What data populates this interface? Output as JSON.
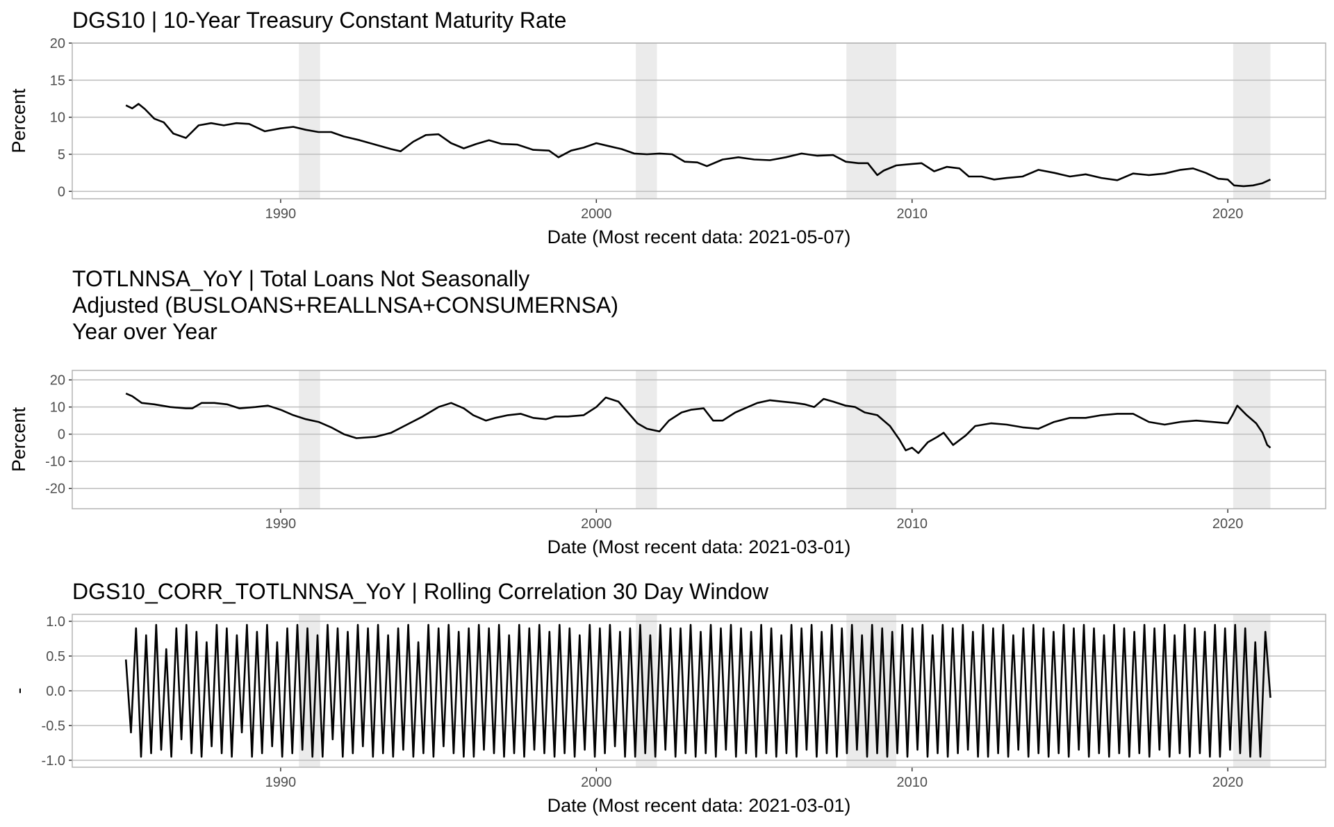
{
  "chart_data": [
    {
      "type": "line",
      "title": "DGS10 | 10-Year Treasury Constant Maturity Rate",
      "xlabel": "Date (Most recent data: 2021-05-07)",
      "ylabel": "Percent",
      "xlim": [
        1983.4,
        2023.1
      ],
      "ylim": [
        -1,
        20
      ],
      "yticks": [
        0,
        5,
        10,
        15,
        20
      ],
      "ytick_labels": [
        "0",
        "5",
        "10",
        "15",
        "20"
      ],
      "xticks": [
        1990,
        2000,
        2010,
        2020
      ],
      "xtick_labels": [
        "1990",
        "2000",
        "2010",
        "2020"
      ],
      "grid": true,
      "recession_shading": [
        [
          1990.58,
          1991.25
        ],
        [
          2001.25,
          2001.92
        ],
        [
          2007.92,
          2009.5
        ],
        [
          2020.17,
          2021.35
        ]
      ],
      "series": [
        {
          "x": [
            1985.1,
            1985.3,
            1985.5,
            1985.7,
            1986.0,
            1986.3,
            1986.6,
            1987.0,
            1987.4,
            1987.8,
            1988.2,
            1988.6,
            1989.0,
            1989.5,
            1990.0,
            1990.4,
            1990.8,
            1991.2,
            1991.6,
            1992.0,
            1992.5,
            1993.0,
            1993.5,
            1993.8,
            1994.2,
            1994.6,
            1995.0,
            1995.4,
            1995.8,
            1996.2,
            1996.6,
            1997.0,
            1997.5,
            1998.0,
            1998.5,
            1998.8,
            1999.2,
            1999.6,
            2000.0,
            2000.4,
            2000.8,
            2001.2,
            2001.6,
            2002.0,
            2002.4,
            2002.8,
            2003.2,
            2003.5,
            2004.0,
            2004.5,
            2005.0,
            2005.5,
            2006.0,
            2006.5,
            2007.0,
            2007.5,
            2007.9,
            2008.3,
            2008.6,
            2008.9,
            2009.1,
            2009.5,
            2010.0,
            2010.3,
            2010.7,
            2011.1,
            2011.5,
            2011.8,
            2012.2,
            2012.6,
            2013.0,
            2013.5,
            2014.0,
            2014.5,
            2015.0,
            2015.5,
            2016.0,
            2016.5,
            2017.0,
            2017.5,
            2018.0,
            2018.5,
            2018.9,
            2019.3,
            2019.7,
            2020.0,
            2020.2,
            2020.5,
            2020.8,
            2021.1,
            2021.35
          ],
          "values": [
            11.6,
            11.2,
            11.8,
            11.1,
            9.8,
            9.3,
            7.8,
            7.2,
            8.9,
            9.2,
            8.9,
            9.2,
            9.1,
            8.1,
            8.5,
            8.7,
            8.3,
            8.0,
            8.0,
            7.4,
            6.9,
            6.3,
            5.7,
            5.4,
            6.7,
            7.6,
            7.7,
            6.5,
            5.8,
            6.4,
            6.9,
            6.4,
            6.3,
            5.6,
            5.5,
            4.6,
            5.5,
            5.9,
            6.5,
            6.1,
            5.7,
            5.1,
            5.0,
            5.1,
            5.0,
            4.0,
            3.9,
            3.4,
            4.3,
            4.6,
            4.3,
            4.2,
            4.6,
            5.1,
            4.8,
            4.9,
            4.0,
            3.8,
            3.8,
            2.2,
            2.8,
            3.5,
            3.7,
            3.8,
            2.7,
            3.3,
            3.1,
            2.0,
            2.0,
            1.6,
            1.8,
            2.0,
            2.9,
            2.5,
            2.0,
            2.3,
            1.8,
            1.5,
            2.4,
            2.2,
            2.4,
            2.9,
            3.1,
            2.5,
            1.7,
            1.6,
            0.8,
            0.7,
            0.8,
            1.1,
            1.6
          ]
        }
      ]
    },
    {
      "type": "line",
      "title": "TOTLNNSA_YoY | Total Loans Not Seasonally\nAdjusted (BUSLOANS+REALLNSA+CONSUMERNSA)\nYear over Year",
      "title_lines": [
        "TOTLNNSA_YoY | Total Loans Not Seasonally",
        "Adjusted (BUSLOANS+REALLNSA+CONSUMERNSA)",
        "Year over Year"
      ],
      "xlabel": "Date (Most recent data: 2021-03-01)",
      "ylabel": "Percent",
      "xlim": [
        1983.4,
        2023.1
      ],
      "ylim": [
        -27.5,
        23.5
      ],
      "yticks": [
        -20,
        -10,
        0,
        10,
        20
      ],
      "ytick_labels": [
        "-20",
        "-10",
        "0",
        "10",
        "20"
      ],
      "xticks": [
        1990,
        2000,
        2010,
        2020
      ],
      "xtick_labels": [
        "1990",
        "2000",
        "2010",
        "2020"
      ],
      "grid": true,
      "recession_shading": [
        [
          1990.58,
          1991.25
        ],
        [
          2001.25,
          2001.92
        ],
        [
          2007.92,
          2009.5
        ],
        [
          2020.17,
          2021.35
        ]
      ],
      "series": [
        {
          "x": [
            1985.1,
            1985.3,
            1985.6,
            1986.0,
            1986.5,
            1987.0,
            1987.2,
            1987.5,
            1987.9,
            1988.3,
            1988.7,
            1989.2,
            1989.6,
            1990.0,
            1990.4,
            1990.8,
            1991.2,
            1991.6,
            1992.0,
            1992.4,
            1993.0,
            1993.5,
            1994.0,
            1994.5,
            1995.0,
            1995.4,
            1995.8,
            1996.1,
            1996.5,
            1996.8,
            1997.2,
            1997.6,
            1998.0,
            1998.4,
            1998.7,
            1999.1,
            1999.6,
            2000.0,
            2000.3,
            2000.7,
            2001.0,
            2001.3,
            2001.6,
            2002.0,
            2002.3,
            2002.7,
            2003.0,
            2003.4,
            2003.7,
            2004.0,
            2004.4,
            2004.8,
            2005.1,
            2005.5,
            2005.9,
            2006.3,
            2006.6,
            2006.9,
            2007.2,
            2007.5,
            2007.9,
            2008.2,
            2008.5,
            2008.9,
            2009.3,
            2009.6,
            2009.8,
            2010.0,
            2010.2,
            2010.5,
            2010.8,
            2011.0,
            2011.3,
            2011.7,
            2012.0,
            2012.5,
            2013.0,
            2013.5,
            2014.0,
            2014.5,
            2015.0,
            2015.5,
            2016.0,
            2016.5,
            2017.0,
            2017.5,
            2018.0,
            2018.5,
            2019.0,
            2019.5,
            2020.0,
            2020.15,
            2020.3,
            2020.6,
            2020.9,
            2021.1,
            2021.25,
            2021.35
          ],
          "values": [
            15.0,
            14.0,
            11.5,
            11.0,
            10.0,
            9.5,
            9.5,
            11.5,
            11.5,
            11.0,
            9.5,
            10.0,
            10.5,
            9.0,
            7.0,
            5.5,
            4.5,
            2.5,
            0.0,
            -1.5,
            -1.0,
            0.5,
            3.5,
            6.5,
            10.0,
            11.5,
            9.5,
            7.0,
            5.0,
            6.0,
            7.0,
            7.5,
            6.0,
            5.5,
            6.5,
            6.5,
            7.0,
            10.0,
            13.5,
            12.0,
            8.0,
            4.0,
            2.0,
            1.0,
            5.0,
            8.0,
            9.0,
            9.5,
            5.0,
            5.0,
            8.0,
            10.0,
            11.5,
            12.5,
            12.0,
            11.5,
            11.0,
            10.0,
            13.0,
            12.0,
            10.5,
            10.0,
            8.0,
            7.0,
            3.0,
            -2.0,
            -6.0,
            -5.0,
            -7.0,
            -3.0,
            -1.0,
            0.5,
            -4.0,
            -0.5,
            3.0,
            4.0,
            3.5,
            2.5,
            2.0,
            4.5,
            6.0,
            6.0,
            7.0,
            7.5,
            7.5,
            4.5,
            3.5,
            4.5,
            5.0,
            4.5,
            4.0,
            7.0,
            10.5,
            7.0,
            4.0,
            0.5,
            -4.0,
            -5.0
          ]
        }
      ]
    },
    {
      "type": "line",
      "title": "DGS10_CORR_TOTLNNSA_YoY | Rolling Correlation  30  Day Window",
      "xlabel": "Date (Most recent data: 2021-03-01)",
      "ylabel": "-",
      "xlim": [
        1983.4,
        2023.1
      ],
      "ylim": [
        -1.1,
        1.1
      ],
      "yticks": [
        -1.0,
        -0.5,
        0.0,
        0.5,
        1.0
      ],
      "ytick_labels": [
        "-1.0",
        "-0.5",
        "0.0",
        "0.5",
        "1.0"
      ],
      "xticks": [
        1990,
        2000,
        2010,
        2020
      ],
      "xtick_labels": [
        "1990",
        "2000",
        "2010",
        "2020"
      ],
      "grid": true,
      "recession_shading": [
        [
          1990.58,
          1991.25
        ],
        [
          2001.25,
          2001.92
        ],
        [
          2007.92,
          2009.5
        ],
        [
          2020.17,
          2021.35
        ]
      ],
      "series": [
        {
          "x_start": 1985.1,
          "x_end": 2021.35,
          "note_on_values": "oscillating rolling correlation bounded in [-1, 1]",
          "values": [
            0.45,
            -0.6,
            0.9,
            -0.95,
            0.8,
            -0.9,
            0.95,
            -0.85,
            0.6,
            -0.95,
            0.9,
            -0.7,
            0.95,
            -0.9,
            0.85,
            -0.95,
            0.7,
            -0.8,
            0.95,
            -0.9,
            0.9,
            -0.95,
            0.8,
            -0.6,
            0.95,
            -0.95,
            0.85,
            -0.9,
            0.95,
            -0.8,
            0.7,
            -0.95,
            0.9,
            -0.9,
            0.95,
            -0.85,
            0.9,
            -0.95,
            0.8,
            -0.95,
            0.95,
            -0.7,
            0.9,
            -0.95,
            0.85,
            -0.9,
            0.95,
            -0.8,
            0.9,
            -0.95,
            0.95,
            -0.9,
            0.8,
            -0.95,
            0.9,
            -0.85,
            0.95,
            -0.95,
            0.7,
            -0.9,
            0.95,
            -0.95,
            0.9,
            -0.8,
            0.95,
            -0.9,
            0.85,
            -0.95,
            0.9,
            -0.95,
            0.95,
            -0.85,
            0.9,
            -0.9,
            0.95,
            -0.95,
            0.8,
            -0.9,
            0.95,
            -0.95,
            0.9,
            -0.85,
            0.95,
            -0.9,
            0.85,
            -0.95,
            0.95,
            -0.9,
            0.9,
            -0.95,
            0.8,
            -0.85,
            0.95,
            -0.95,
            0.9,
            -0.9,
            0.95,
            -0.8,
            0.85,
            -0.95,
            0.9,
            -0.95,
            0.95,
            -0.9,
            0.8,
            -0.95,
            0.95,
            -0.85,
            0.9,
            -0.95,
            0.9,
            -0.9,
            0.95,
            -0.95,
            0.85,
            -0.9,
            0.95,
            -0.95,
            0.9,
            -0.85,
            0.95,
            -0.95,
            0.9,
            -0.9,
            0.85,
            -0.95,
            0.95,
            -0.9,
            0.9,
            -0.95,
            0.8,
            -0.9,
            0.95,
            -0.95,
            0.9,
            -0.85,
            0.95,
            -0.95,
            0.85,
            -0.9,
            0.95,
            -0.95,
            0.9,
            -0.9,
            0.95,
            -0.85,
            0.8,
            -0.95,
            0.95,
            -0.9,
            0.9,
            -0.95,
            0.85,
            -0.9,
            0.95,
            -0.95,
            0.9,
            -0.85,
            0.95,
            -0.95,
            0.8,
            -0.9,
            0.95,
            -0.95,
            0.9,
            -0.9,
            0.95,
            -0.85,
            0.85,
            -0.95,
            0.95,
            -0.95,
            0.9,
            -0.9,
            0.95,
            -0.95,
            0.8,
            -0.85,
            0.9,
            -0.95,
            0.95,
            -0.9,
            0.9,
            -0.95,
            0.85,
            -0.9,
            0.95,
            -0.95,
            0.9,
            -0.85,
            0.95,
            -0.95,
            0.9,
            -0.9,
            0.8,
            -0.95,
            0.95,
            -0.9,
            0.9,
            -0.95,
            0.85,
            -0.9,
            0.95,
            -0.95,
            0.9,
            -0.85,
            0.95,
            -0.95,
            0.8,
            -0.9,
            0.95,
            -0.95,
            0.9,
            -0.9,
            0.85,
            -0.95,
            0.95,
            -0.95,
            0.9,
            -0.85,
            0.95,
            -0.9,
            0.9,
            -0.95,
            0.7,
            -0.95,
            0.85,
            -0.1
          ]
        }
      ]
    }
  ]
}
